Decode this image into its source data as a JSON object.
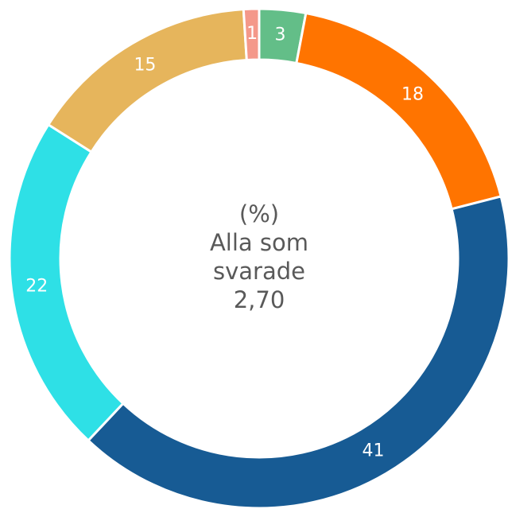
{
  "chart_data": {
    "type": "donut",
    "values": [
      3,
      18,
      41,
      22,
      15,
      1
    ],
    "colors": [
      "#63be88",
      "#ff7400",
      "#175b94",
      "#2ee0e6",
      "#e6b55c",
      "#f4988a"
    ],
    "center_lines": [
      "(%)",
      "Alla som",
      "svarade",
      "2,70"
    ]
  }
}
